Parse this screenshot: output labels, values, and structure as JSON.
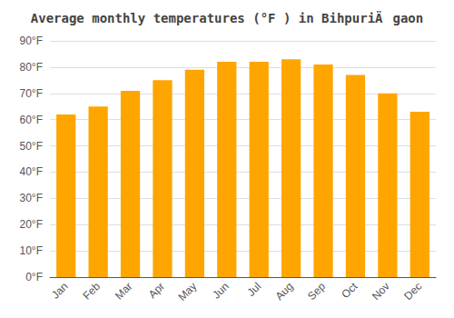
{
  "chart_data": {
    "type": "bar",
    "title": "Average monthly temperatures (°F ) in BihpuriÄgaon",
    "categories": [
      "Jan",
      "Feb",
      "Mar",
      "Apr",
      "May",
      "Jun",
      "Jul",
      "Aug",
      "Sep",
      "Oct",
      "Nov",
      "Dec"
    ],
    "values": [
      62,
      65,
      71,
      75,
      79,
      82,
      82,
      83,
      81,
      77,
      70,
      63
    ],
    "color": "#FFA500",
    "ylim": [
      0,
      90
    ],
    "yticks": [
      {
        "value": 0,
        "label": "0°F"
      },
      {
        "value": 10,
        "label": "10°F"
      },
      {
        "value": 20,
        "label": "20°F"
      },
      {
        "value": 30,
        "label": "30°F"
      },
      {
        "value": 40,
        "label": "40°F"
      },
      {
        "value": 50,
        "label": "50°F"
      },
      {
        "value": 60,
        "label": "60°F"
      },
      {
        "value": 70,
        "label": "70°F"
      },
      {
        "value": 80,
        "label": "80°F"
      },
      {
        "value": 90,
        "label": "90°F"
      }
    ],
    "grid": true
  }
}
